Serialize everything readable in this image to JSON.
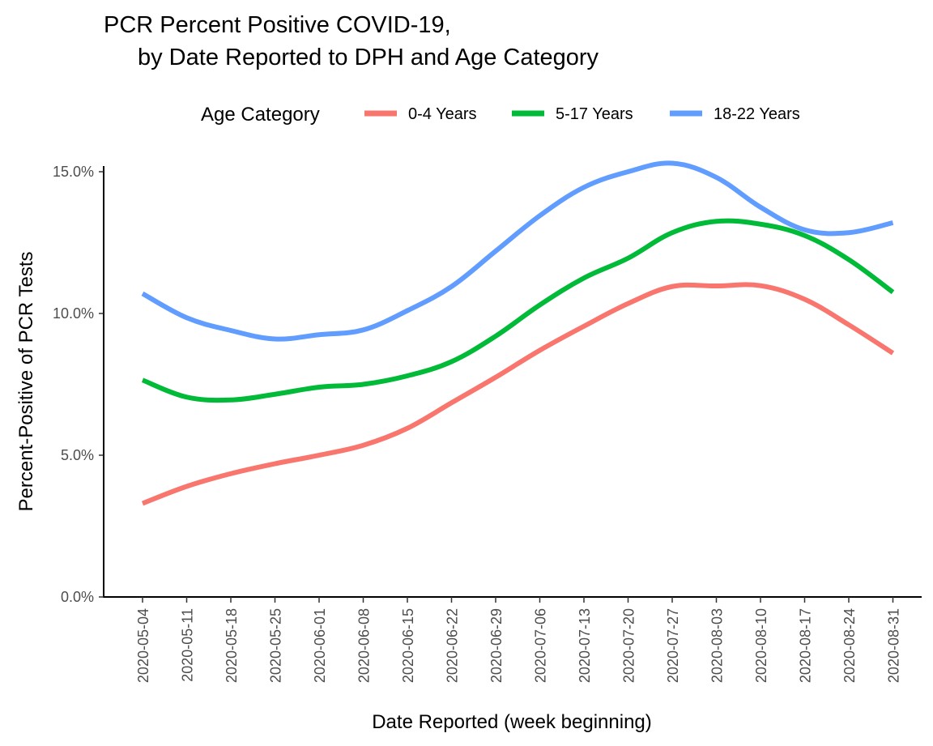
{
  "chart_data": {
    "type": "line",
    "title_line1": "PCR Percent Positive COVID-19,",
    "title_line2": "by Date Reported to DPH and Age Category",
    "xlabel": "Date Reported (week beginning)",
    "ylabel": "Percent-Positive of PCR Tests",
    "legend_title": "Age Category",
    "legend_position": "top",
    "grid": false,
    "categories": [
      "2020-05-04",
      "2020-05-11",
      "2020-05-18",
      "2020-05-25",
      "2020-06-01",
      "2020-06-08",
      "2020-06-15",
      "2020-06-22",
      "2020-06-29",
      "2020-07-06",
      "2020-07-13",
      "2020-07-20",
      "2020-07-27",
      "2020-08-03",
      "2020-08-10",
      "2020-08-17",
      "2020-08-24",
      "2020-08-31"
    ],
    "ylim": [
      0,
      15.2
    ],
    "yticks": [
      0,
      5,
      10,
      15
    ],
    "ytick_labels": [
      "0.0%",
      "5.0%",
      "10.0%",
      "15.0%"
    ],
    "series": [
      {
        "name": "0-4 Years",
        "color": "#F8766D",
        "values": [
          3.3,
          3.9,
          4.35,
          4.7,
          5.0,
          5.35,
          5.95,
          6.85,
          7.75,
          8.7,
          9.55,
          10.35,
          10.95,
          10.97,
          10.98,
          10.5,
          9.6,
          8.6
        ]
      },
      {
        "name": "5-17 Years",
        "color": "#00BA38",
        "values": [
          7.65,
          7.05,
          6.95,
          7.15,
          7.4,
          7.5,
          7.8,
          8.3,
          9.2,
          10.3,
          11.25,
          11.95,
          12.85,
          13.25,
          13.15,
          12.75,
          11.9,
          10.75
        ]
      },
      {
        "name": "18-22 Years",
        "color": "#619CFF",
        "values": [
          10.7,
          9.85,
          9.4,
          9.1,
          9.25,
          9.42,
          10.1,
          10.95,
          12.2,
          13.45,
          14.45,
          15.0,
          15.3,
          14.8,
          13.75,
          12.95,
          12.85,
          13.2
        ]
      }
    ]
  }
}
